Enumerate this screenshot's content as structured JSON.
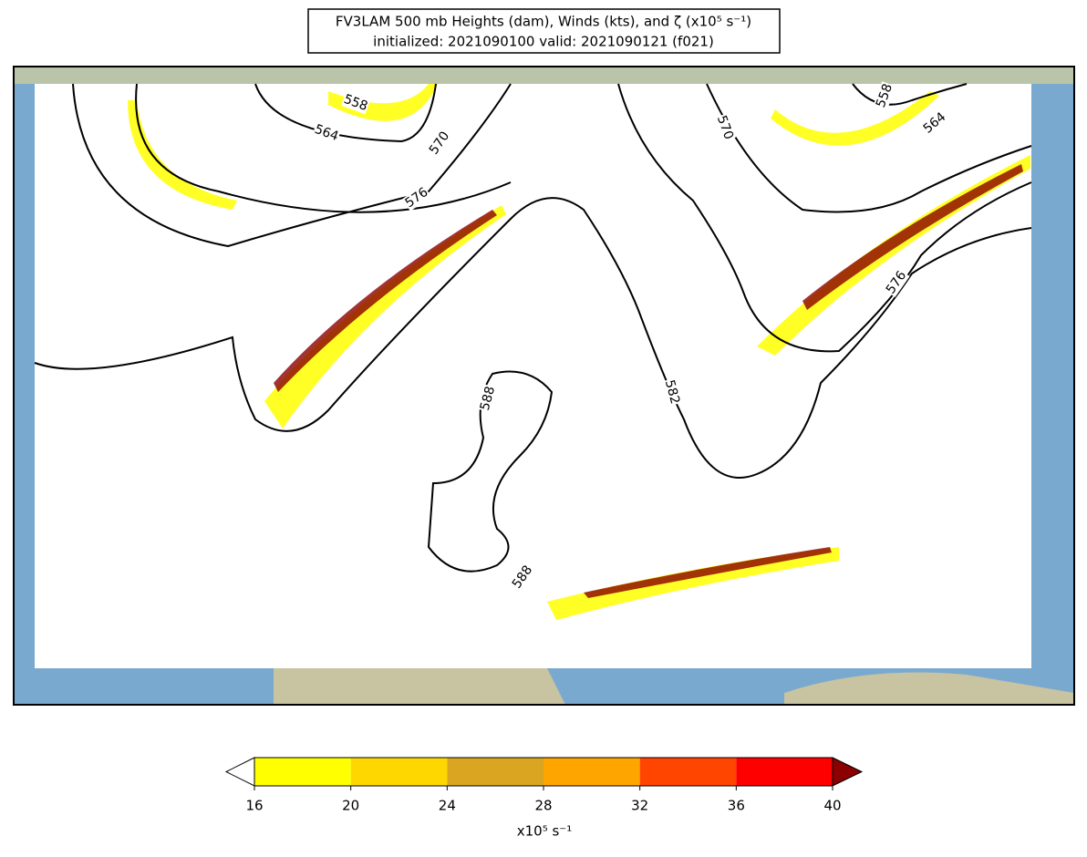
{
  "header": {
    "title": "FV3LAM 500 mb Heights (dam), Winds (kts), and ζ (x10⁵ s⁻¹)",
    "subtitle": "initialized: 2021090100 valid: 2021090121 (f021)"
  },
  "map": {
    "contour_labels": [
      558,
      564,
      570,
      576,
      588,
      588,
      582,
      570,
      558,
      564,
      576
    ]
  },
  "colorbar": {
    "ticks": [
      16,
      20,
      24,
      28,
      32,
      36,
      40
    ],
    "colors": [
      "#ffff00",
      "#ffd700",
      "#daa520",
      "#ffa500",
      "#ff4500",
      "#ff0000"
    ],
    "under_color": "#ffffff",
    "over_color": "#8b0000",
    "label": "x10⁵ s⁻¹"
  }
}
